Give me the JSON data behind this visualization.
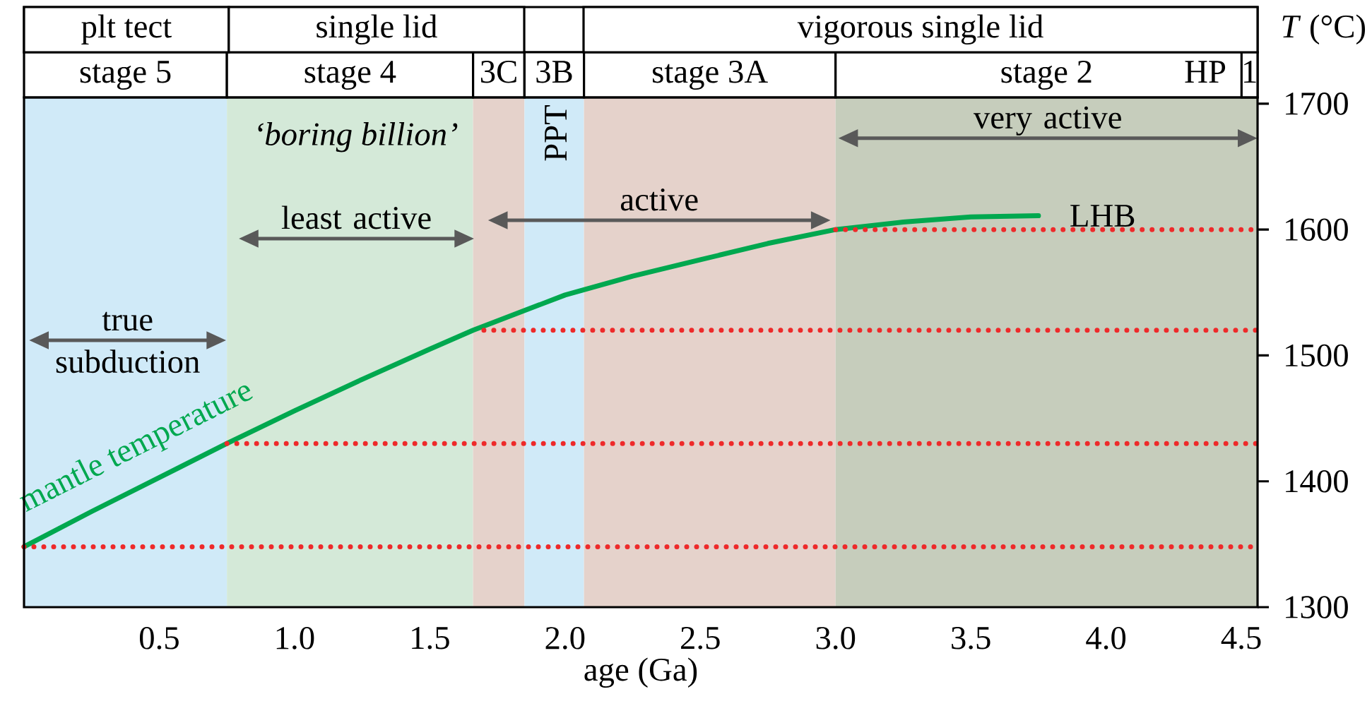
{
  "chart_data": {
    "type": "line",
    "xlabel": "age (Ga)",
    "ylabel": "*T* (°C)",
    "xlim": [
      0,
      4.56
    ],
    "ylim": [
      1300,
      1705
    ],
    "xticks": [
      0.5,
      {
        "value": 1,
        "label": "1.0"
      },
      1.5,
      {
        "value": 2,
        "label": "2.0"
      },
      2.5,
      {
        "value": 3,
        "label": "3.0"
      },
      3.5,
      {
        "value": 4,
        "label": "4.0"
      },
      4.5
    ],
    "yticks": [
      1300,
      1400,
      1500,
      1600,
      1700
    ],
    "bands": [
      {
        "axis": "x",
        "from": 0,
        "to": 0.75,
        "label": "stage 5",
        "color": "#d0eaf8"
      },
      {
        "axis": "x",
        "from": 0.75,
        "to": 1.66,
        "label": "stage 4",
        "color": "#d4e9d8"
      },
      {
        "axis": "x",
        "from": 1.66,
        "to": 1.85,
        "label": "3C",
        "color": "#e5d2cb"
      },
      {
        "axis": "x",
        "from": 1.85,
        "to": 2.07,
        "label": "3B",
        "color": "#d0eaf8"
      },
      {
        "axis": "x",
        "from": 2.07,
        "to": 3.0,
        "label": "stage 3A",
        "color": "#e5d2cb"
      },
      {
        "axis": "x",
        "from": 3.0,
        "to": 4.56,
        "label": "stage 2",
        "color": "#c6cdbc"
      }
    ],
    "series": [
      {
        "name": "mantle temperature",
        "color": "#00a84f",
        "x": [
          0,
          0.25,
          0.5,
          0.75,
          1.0,
          1.25,
          1.5,
          1.66,
          2.0,
          2.25,
          2.5,
          2.75,
          3.0,
          3.25,
          3.5,
          3.75
        ],
        "values": [
          1348,
          1376,
          1403,
          1430,
          1456,
          1481,
          1505,
          1520,
          1548,
          1563,
          1576,
          1589,
          1600,
          1606,
          1610,
          1611
        ]
      },
      {
        "color": "#ee2a2a",
        "line_style": "dotted",
        "x": [
          0,
          4.56
        ],
        "values": [
          1348,
          1348
        ]
      },
      {
        "color": "#ee2a2a",
        "line_style": "dotted",
        "x": [
          0.75,
          4.56
        ],
        "values": [
          1430,
          1430
        ]
      },
      {
        "color": "#ee2a2a",
        "line_style": "dotted",
        "x": [
          1.7,
          4.56
        ],
        "values": [
          1520,
          1520
        ]
      },
      {
        "color": "#ee2a2a",
        "line_style": "dotted",
        "x": [
          3.0,
          4.56
        ],
        "values": [
          1600,
          1600
        ]
      }
    ],
    "annotations": [
      {
        "text": "LHB",
        "x": 3.75,
        "y": 1611
      },
      "‘boring billion’",
      "PPT",
      "HP",
      "1",
      "plt tect",
      "single lid",
      "vigorous single lid",
      "true subduction",
      "least active",
      "active",
      "very active"
    ]
  }
}
